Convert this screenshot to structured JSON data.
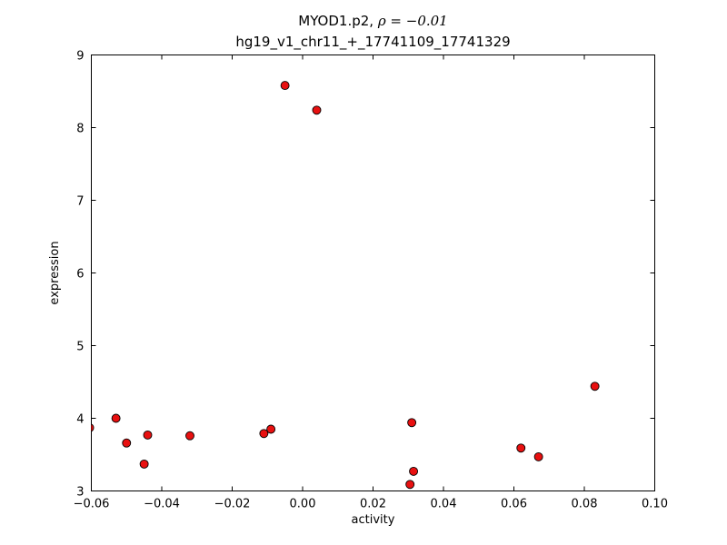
{
  "chart_data": {
    "type": "scatter",
    "title": "MYOD1.p2, ρ = −0.01",
    "title_parts": {
      "text": "MYOD1.p2, ",
      "math": "ρ = −0.01"
    },
    "subtitle": "hg19_v1_chr11_+_17741109_17741329",
    "xlabel": "activity",
    "ylabel": "expression",
    "xlim": [
      -0.06,
      0.1
    ],
    "ylim": [
      3,
      9
    ],
    "grid": false,
    "legend": "none",
    "xticks": [
      -0.06,
      -0.04,
      -0.02,
      0.0,
      0.02,
      0.04,
      0.06,
      0.08,
      0.1
    ],
    "xtick_labels": [
      "−0.06",
      "−0.04",
      "−0.02",
      "0.00",
      "0.02",
      "0.04",
      "0.06",
      "0.08",
      "0.10"
    ],
    "yticks": [
      3,
      4,
      5,
      6,
      7,
      8,
      9
    ],
    "ytick_labels": [
      "3",
      "4",
      "5",
      "6",
      "7",
      "8",
      "9"
    ],
    "marker": {
      "shape": "circle",
      "face_color": "#e81010",
      "edge_color": "#000000",
      "radius": 4.5
    },
    "frame_color": "#000000",
    "points": [
      [
        -0.0605,
        3.87
      ],
      [
        -0.053,
        4.0
      ],
      [
        -0.05,
        3.66
      ],
      [
        -0.045,
        3.37
      ],
      [
        -0.044,
        3.77
      ],
      [
        -0.032,
        3.76
      ],
      [
        -0.011,
        3.79
      ],
      [
        -0.009,
        3.85
      ],
      [
        -0.005,
        8.58
      ],
      [
        0.004,
        8.24
      ],
      [
        0.031,
        3.94
      ],
      [
        0.0315,
        3.27
      ],
      [
        0.0305,
        3.09
      ],
      [
        0.062,
        3.59
      ],
      [
        0.067,
        3.47
      ],
      [
        0.083,
        4.44
      ]
    ]
  }
}
